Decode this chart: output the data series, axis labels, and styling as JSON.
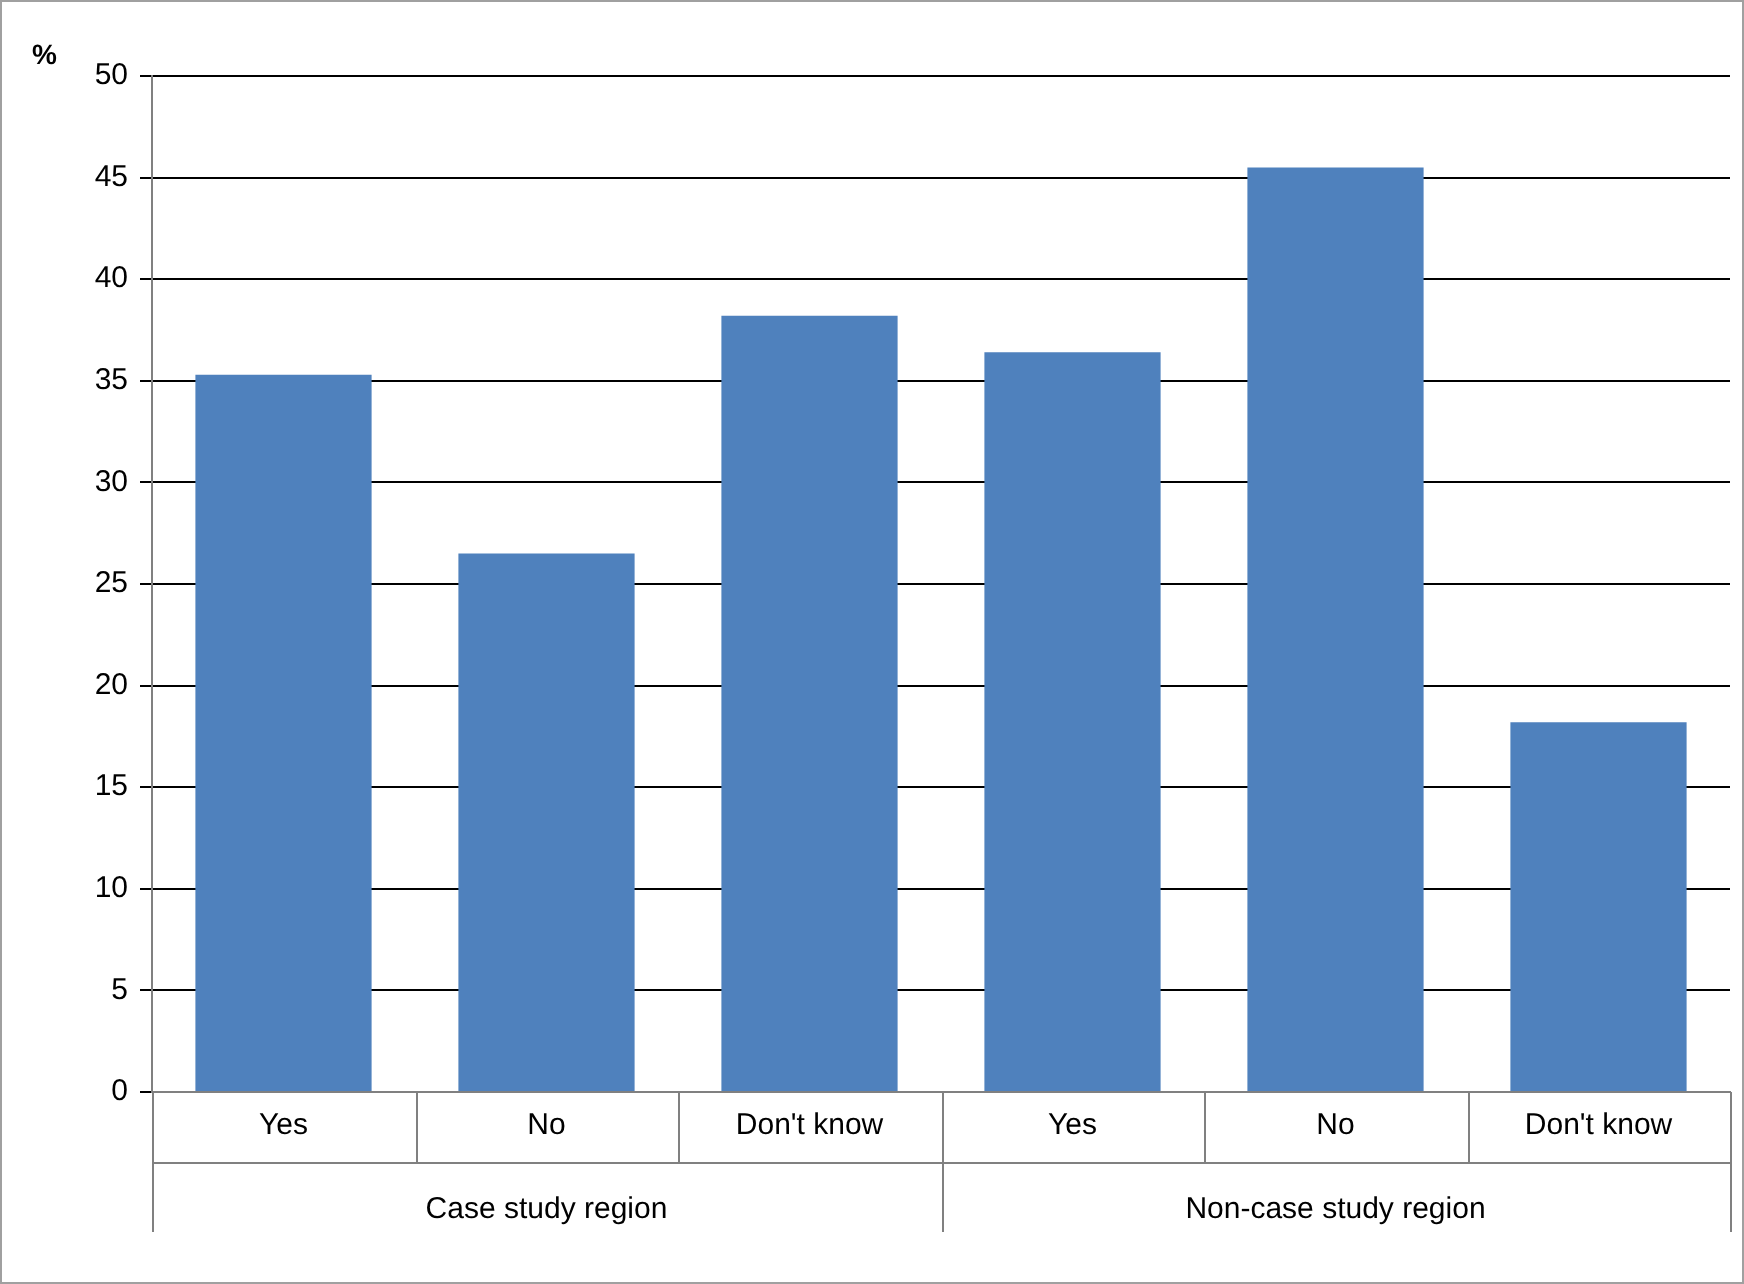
{
  "chart_data": {
    "type": "bar",
    "ylabel": "%",
    "categories": [
      "Yes",
      "No",
      "Don't know",
      "Yes",
      "No",
      "Don't know"
    ],
    "values": [
      35.3,
      26.5,
      38.2,
      36.4,
      45.5,
      18.2
    ],
    "color": "#4f81bd",
    "ylim": [
      0,
      50
    ],
    "yticks": [
      0,
      5,
      10,
      15,
      20,
      25,
      30,
      35,
      40,
      45,
      50
    ],
    "grid": "y",
    "legend": false,
    "annotations": [
      "Case study region",
      "Non-case study region"
    ]
  }
}
